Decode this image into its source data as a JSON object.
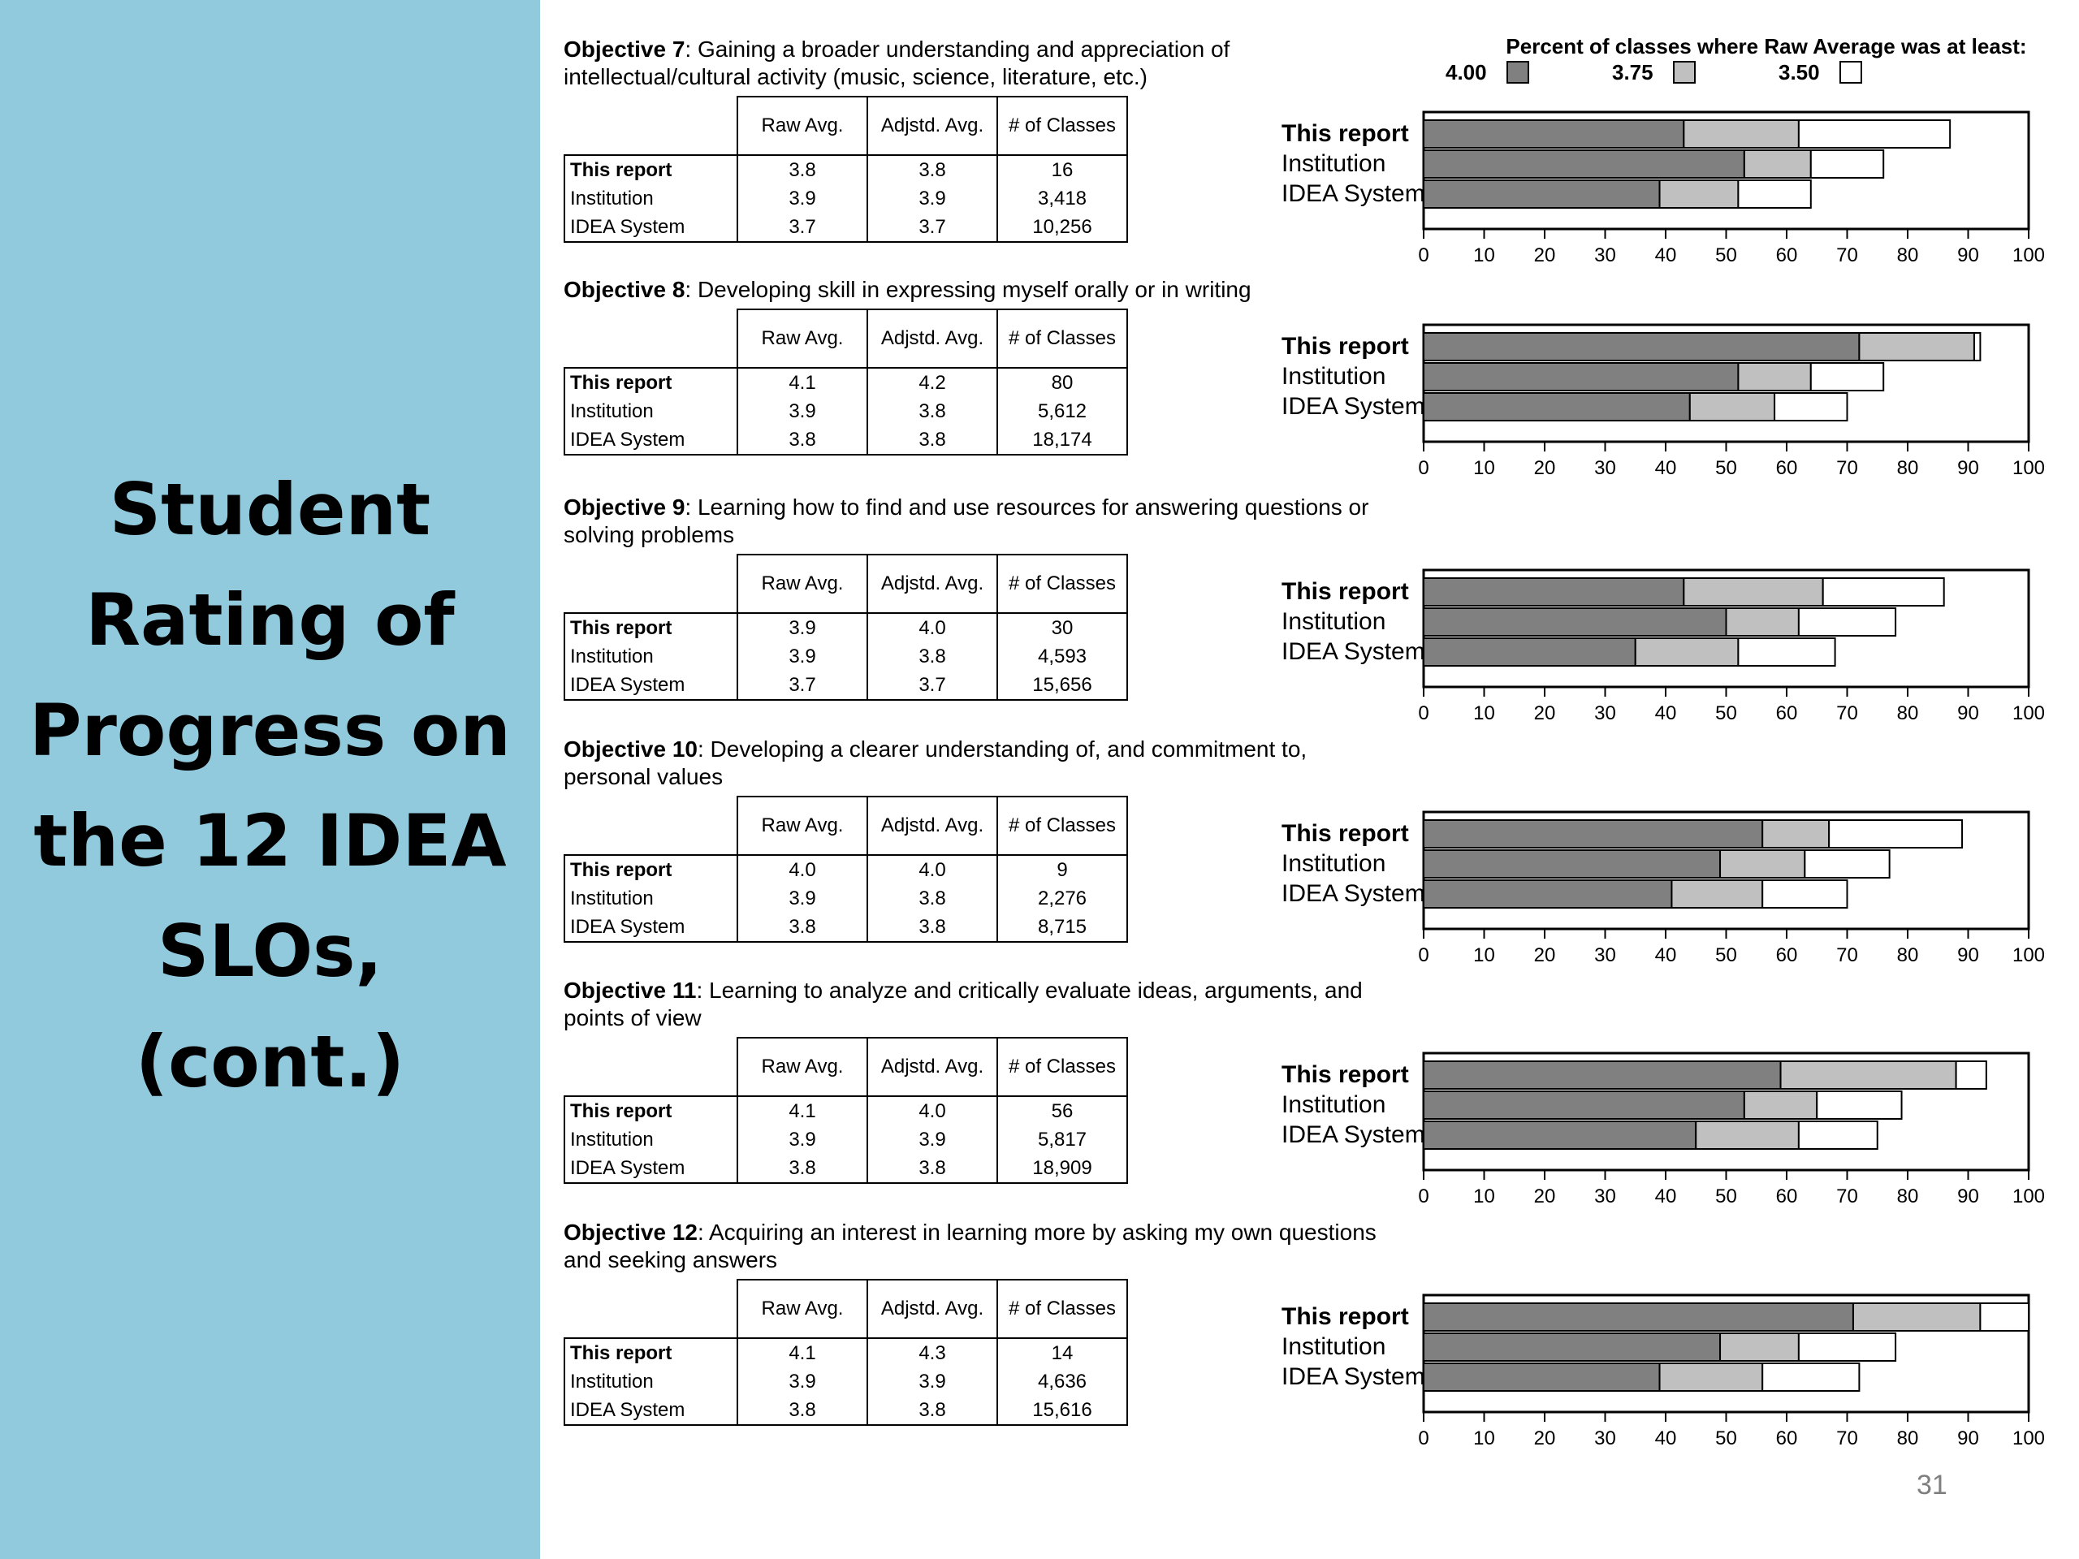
{
  "slide": {
    "title_lines": [
      "Student",
      "Rating of",
      "Progress on",
      "the 12 IDEA",
      "SLOs,",
      "(cont.)"
    ],
    "page_number": "31"
  },
  "legend": {
    "title": "Percent of classes where Raw Average was at least:",
    "items": [
      {
        "label": "4.00",
        "color": "#808080"
      },
      {
        "label": "3.75",
        "color": "#c0c0c0"
      },
      {
        "label": "3.50",
        "color": "#ffffff"
      }
    ]
  },
  "table_headers": [
    "Raw Avg.",
    "Adjstd. Avg.",
    "# of Classes"
  ],
  "row_labels": [
    "This report",
    "Institution",
    "IDEA System"
  ],
  "chart_data": [
    {
      "type": "bar",
      "heading_bold": "Objective 7",
      "heading_rest": ": Gaining a broader understanding and appreciation of intellectual/cultural activity (music, science, literature, etc.)",
      "rows": [
        {
          "label": "This report",
          "raw": "3.8",
          "adj": "3.8",
          "classes": "16",
          "pct": [
            43,
            62,
            87
          ]
        },
        {
          "label": "Institution",
          "raw": "3.9",
          "adj": "3.9",
          "classes": "3,418",
          "pct": [
            53,
            64,
            76
          ]
        },
        {
          "label": "IDEA System",
          "raw": "3.7",
          "adj": "3.7",
          "classes": "10,256",
          "pct": [
            39,
            52,
            64
          ]
        }
      ],
      "xlim": [
        0,
        100
      ],
      "xticks": [
        0,
        10,
        20,
        30,
        40,
        50,
        60,
        70,
        80,
        90,
        100
      ]
    },
    {
      "type": "bar",
      "heading_bold": "Objective 8",
      "heading_rest": ": Developing skill in expressing myself orally or in writing",
      "rows": [
        {
          "label": "This report",
          "raw": "4.1",
          "adj": "4.2",
          "classes": "80",
          "pct": [
            72,
            91,
            92
          ]
        },
        {
          "label": "Institution",
          "raw": "3.9",
          "adj": "3.8",
          "classes": "5,612",
          "pct": [
            52,
            64,
            76
          ]
        },
        {
          "label": "IDEA System",
          "raw": "3.8",
          "adj": "3.8",
          "classes": "18,174",
          "pct": [
            44,
            58,
            70
          ]
        }
      ],
      "xlim": [
        0,
        100
      ],
      "xticks": [
        0,
        10,
        20,
        30,
        40,
        50,
        60,
        70,
        80,
        90,
        100
      ]
    },
    {
      "type": "bar",
      "heading_bold": "Objective 9",
      "heading_rest": ": Learning how to find and use resources for answering questions or solving problems",
      "rows": [
        {
          "label": "This report",
          "raw": "3.9",
          "adj": "4.0",
          "classes": "30",
          "pct": [
            43,
            66,
            86
          ]
        },
        {
          "label": "Institution",
          "raw": "3.9",
          "adj": "3.8",
          "classes": "4,593",
          "pct": [
            50,
            62,
            78
          ]
        },
        {
          "label": "IDEA System",
          "raw": "3.7",
          "adj": "3.7",
          "classes": "15,656",
          "pct": [
            35,
            52,
            68
          ]
        }
      ],
      "xlim": [
        0,
        100
      ],
      "xticks": [
        0,
        10,
        20,
        30,
        40,
        50,
        60,
        70,
        80,
        90,
        100
      ]
    },
    {
      "type": "bar",
      "heading_bold": "Objective 10",
      "heading_rest": ": Developing a clearer understanding of, and commitment to, personal values",
      "rows": [
        {
          "label": "This report",
          "raw": "4.0",
          "adj": "4.0",
          "classes": "9",
          "pct": [
            56,
            67,
            89
          ]
        },
        {
          "label": "Institution",
          "raw": "3.9",
          "adj": "3.8",
          "classes": "2,276",
          "pct": [
            49,
            63,
            77
          ]
        },
        {
          "label": "IDEA System",
          "raw": "3.8",
          "adj": "3.8",
          "classes": "8,715",
          "pct": [
            41,
            56,
            70
          ]
        }
      ],
      "xlim": [
        0,
        100
      ],
      "xticks": [
        0,
        10,
        20,
        30,
        40,
        50,
        60,
        70,
        80,
        90,
        100
      ]
    },
    {
      "type": "bar",
      "heading_bold": "Objective 11",
      "heading_rest": ": Learning to analyze and critically evaluate ideas, arguments, and points of view",
      "rows": [
        {
          "label": "This report",
          "raw": "4.1",
          "adj": "4.0",
          "classes": "56",
          "pct": [
            59,
            88,
            93
          ]
        },
        {
          "label": "Institution",
          "raw": "3.9",
          "adj": "3.9",
          "classes": "5,817",
          "pct": [
            53,
            65,
            79
          ]
        },
        {
          "label": "IDEA System",
          "raw": "3.8",
          "adj": "3.8",
          "classes": "18,909",
          "pct": [
            45,
            62,
            75
          ]
        }
      ],
      "xlim": [
        0,
        100
      ],
      "xticks": [
        0,
        10,
        20,
        30,
        40,
        50,
        60,
        70,
        80,
        90,
        100
      ]
    },
    {
      "type": "bar",
      "heading_bold": "Objective 12",
      "heading_rest": ": Acquiring an interest in learning more by asking my own questions and seeking answers",
      "rows": [
        {
          "label": "This report",
          "raw": "4.1",
          "adj": "4.3",
          "classes": "14",
          "pct": [
            71,
            92,
            100
          ]
        },
        {
          "label": "Institution",
          "raw": "3.9",
          "adj": "3.9",
          "classes": "4,636",
          "pct": [
            49,
            62,
            78
          ]
        },
        {
          "label": "IDEA System",
          "raw": "3.8",
          "adj": "3.8",
          "classes": "15,616",
          "pct": [
            39,
            56,
            72
          ]
        }
      ],
      "xlim": [
        0,
        100
      ],
      "xticks": [
        0,
        10,
        20,
        30,
        40,
        50,
        60,
        70,
        80,
        90,
        100
      ]
    }
  ]
}
